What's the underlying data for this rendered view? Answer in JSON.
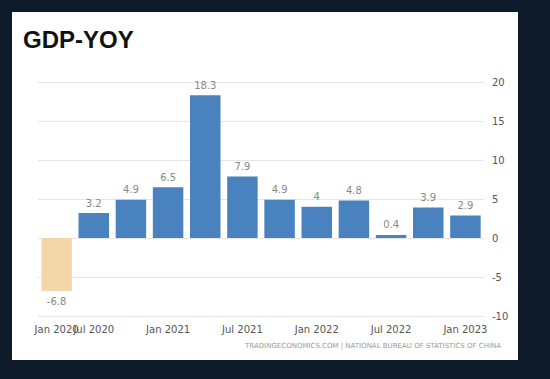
{
  "chart_data": {
    "type": "bar",
    "title": "GDP-YOY",
    "source": "TRADINGECONOMICS.COM | NATIONAL BUREAU OF STATISTICS OF CHINA",
    "categories": [
      "Jan 2020",
      "Jul 2020",
      null,
      "Jan 2021",
      null,
      "Jul 2021",
      null,
      "Jan 2022",
      null,
      "Jul 2022",
      null,
      "Jan 2023"
    ],
    "values": [
      -6.8,
      3.2,
      4.9,
      6.5,
      18.3,
      7.9,
      4.9,
      4,
      4.8,
      0.4,
      3.9,
      2.9
    ],
    "colors": [
      "#f5d6a8",
      "#4a82bf",
      "#4a82bf",
      "#4a82bf",
      "#4a82bf",
      "#4a82bf",
      "#4a82bf",
      "#4a82bf",
      "#4a82bf",
      "#4a82bf",
      "#4a82bf",
      "#4a82bf"
    ],
    "ylim": [
      -10,
      20
    ],
    "yticks": [
      -10,
      -5,
      0,
      5,
      10,
      15,
      20
    ],
    "grid": true,
    "data_labels": true
  }
}
